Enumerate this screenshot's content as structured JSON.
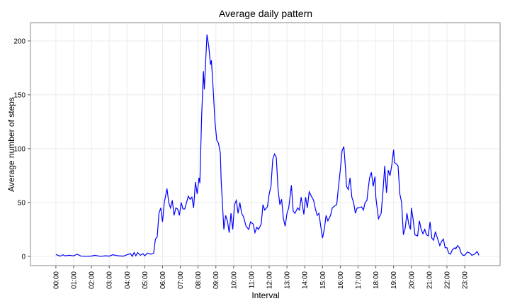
{
  "chart_data": {
    "type": "line",
    "title": "Average daily pattern",
    "x_label": "Interval",
    "y_label": "Average number of steps",
    "x": [
      0,
      0.25,
      0.4,
      0.5,
      0.75,
      1.0,
      1.2,
      1.4,
      1.7,
      2.0,
      2.2,
      2.5,
      2.8,
      3.0,
      3.2,
      3.5,
      3.8,
      4.0,
      4.2,
      4.3,
      4.4,
      4.5,
      4.6,
      4.75,
      4.9,
      5.0,
      5.15,
      5.35,
      5.5,
      5.6,
      5.7,
      5.8,
      5.9,
      6.0,
      6.1,
      6.25,
      6.35,
      6.45,
      6.55,
      6.65,
      6.75,
      6.85,
      6.95,
      7.05,
      7.15,
      7.25,
      7.35,
      7.45,
      7.55,
      7.65,
      7.75,
      7.85,
      7.95,
      8.05,
      8.1,
      8.2,
      8.3,
      8.35,
      8.5,
      8.6,
      8.7,
      8.75,
      8.85,
      8.95,
      9.05,
      9.15,
      9.25,
      9.3,
      9.4,
      9.45,
      9.55,
      9.65,
      9.75,
      9.85,
      9.95,
      10.05,
      10.15,
      10.25,
      10.35,
      10.45,
      10.55,
      10.7,
      10.85,
      10.95,
      11.1,
      11.2,
      11.3,
      11.4,
      11.55,
      11.65,
      11.75,
      11.9,
      12.0,
      12.1,
      12.2,
      12.3,
      12.4,
      12.5,
      12.6,
      12.7,
      12.8,
      12.9,
      13.0,
      13.1,
      13.25,
      13.35,
      13.45,
      13.6,
      13.7,
      13.8,
      13.95,
      14.05,
      14.15,
      14.25,
      14.4,
      14.5,
      14.6,
      14.7,
      14.8,
      14.9,
      15.0,
      15.1,
      15.2,
      15.3,
      15.45,
      15.55,
      15.7,
      15.8,
      15.9,
      16.0,
      16.1,
      16.2,
      16.3,
      16.35,
      16.45,
      16.55,
      16.65,
      16.75,
      16.85,
      16.95,
      17.05,
      17.2,
      17.3,
      17.4,
      17.5,
      17.55,
      17.65,
      17.75,
      17.85,
      17.95,
      18.0,
      18.05,
      18.15,
      18.3,
      18.4,
      18.5,
      18.6,
      18.7,
      18.8,
      18.9,
      19.0,
      19.05,
      19.15,
      19.25,
      19.35,
      19.45,
      19.55,
      19.65,
      19.75,
      19.85,
      19.95,
      20.0,
      20.1,
      20.2,
      20.35,
      20.45,
      20.55,
      20.65,
      20.75,
      20.85,
      20.95,
      21.05,
      21.15,
      21.25,
      21.35,
      21.5,
      21.6,
      21.7,
      21.8,
      21.9,
      22.0,
      22.1,
      22.2,
      22.3,
      22.45,
      22.5,
      22.6,
      22.7,
      22.8,
      22.9,
      23.0,
      23.15,
      23.3,
      23.4,
      23.55,
      23.7,
      23.8
    ],
    "series": [
      {
        "name": "steps",
        "color": "#0000ff",
        "values": [
          1.7,
          0.2,
          1.5,
          0.5,
          1,
          0.5,
          2,
          0.3,
          0,
          0.3,
          1,
          0,
          0.5,
          0.2,
          1.5,
          0.5,
          0.2,
          1.5,
          2.5,
          0,
          3.5,
          0.5,
          3.5,
          1,
          2.5,
          0.5,
          3,
          2,
          3,
          16,
          18,
          40,
          45,
          32,
          50,
          63,
          50,
          45,
          52,
          38,
          45,
          44,
          38,
          50,
          44,
          44,
          50,
          56,
          53,
          55,
          45,
          69,
          58,
          73,
          68,
          130,
          172,
          155,
          206,
          195,
          178,
          182,
          155,
          125,
          108,
          105,
          96,
          70,
          40,
          25,
          38,
          33,
          22,
          40,
          25,
          48,
          52,
          40,
          50,
          40,
          37,
          28,
          25,
          32,
          30,
          22,
          27,
          25,
          30,
          48,
          43,
          46,
          58,
          65,
          90,
          95,
          92,
          62,
          48,
          53,
          35,
          28,
          40,
          45,
          66,
          42,
          40,
          45,
          43,
          55,
          39,
          55,
          45,
          60,
          55,
          52,
          44,
          38,
          40,
          28,
          17,
          25,
          38,
          33,
          38,
          45,
          47,
          48,
          65,
          80,
          98,
          102,
          80,
          65,
          62,
          73,
          55,
          50,
          40,
          45,
          45,
          46,
          43,
          50,
          52,
          60,
          73,
          78,
          65,
          74,
          55,
          48,
          35,
          40,
          60,
          84,
          59,
          80,
          75,
          85,
          99,
          87,
          86,
          84,
          58,
          50,
          20,
          26,
          40,
          30,
          25,
          45,
          34,
          20,
          19,
          33,
          25,
          21,
          25,
          20,
          19,
          32,
          17,
          15,
          23,
          15,
          10,
          14,
          16,
          8,
          8,
          3,
          2,
          6,
          8,
          7,
          10,
          8,
          3,
          1,
          1,
          4,
          3,
          1,
          2,
          4.5,
          1
        ]
      }
    ],
    "xlim": [
      -1.43,
      24.99
    ],
    "xticks": [
      {
        "value": 0,
        "label": "00:00"
      },
      {
        "value": 1,
        "label": "01:00"
      },
      {
        "value": 2,
        "label": "02:00"
      },
      {
        "value": 3,
        "label": "03:00"
      },
      {
        "value": 4,
        "label": "04:00"
      },
      {
        "value": 5,
        "label": "05:00"
      },
      {
        "value": 6,
        "label": "06:00"
      },
      {
        "value": 7,
        "label": "07:00"
      },
      {
        "value": 8,
        "label": "08:00"
      },
      {
        "value": 9,
        "label": "09:00"
      },
      {
        "value": 10,
        "label": "10:00"
      },
      {
        "value": 11,
        "label": "11:00"
      },
      {
        "value": 12,
        "label": "12:00"
      },
      {
        "value": 13,
        "label": "13:00"
      },
      {
        "value": 14,
        "label": "14:00"
      },
      {
        "value": 15,
        "label": "15:00"
      },
      {
        "value": 16,
        "label": "16:00"
      },
      {
        "value": 17,
        "label": "17:00"
      },
      {
        "value": 18,
        "label": "18:00"
      },
      {
        "value": 19,
        "label": "19:00"
      },
      {
        "value": 20,
        "label": "20:00"
      },
      {
        "value": 21,
        "label": "21:00"
      },
      {
        "value": 22,
        "label": "22:00"
      },
      {
        "value": 23,
        "label": "23:00"
      }
    ],
    "ylim": [
      -8.6,
      217
    ],
    "yticks": [
      0,
      50,
      100,
      150,
      200
    ],
    "grid": true
  }
}
